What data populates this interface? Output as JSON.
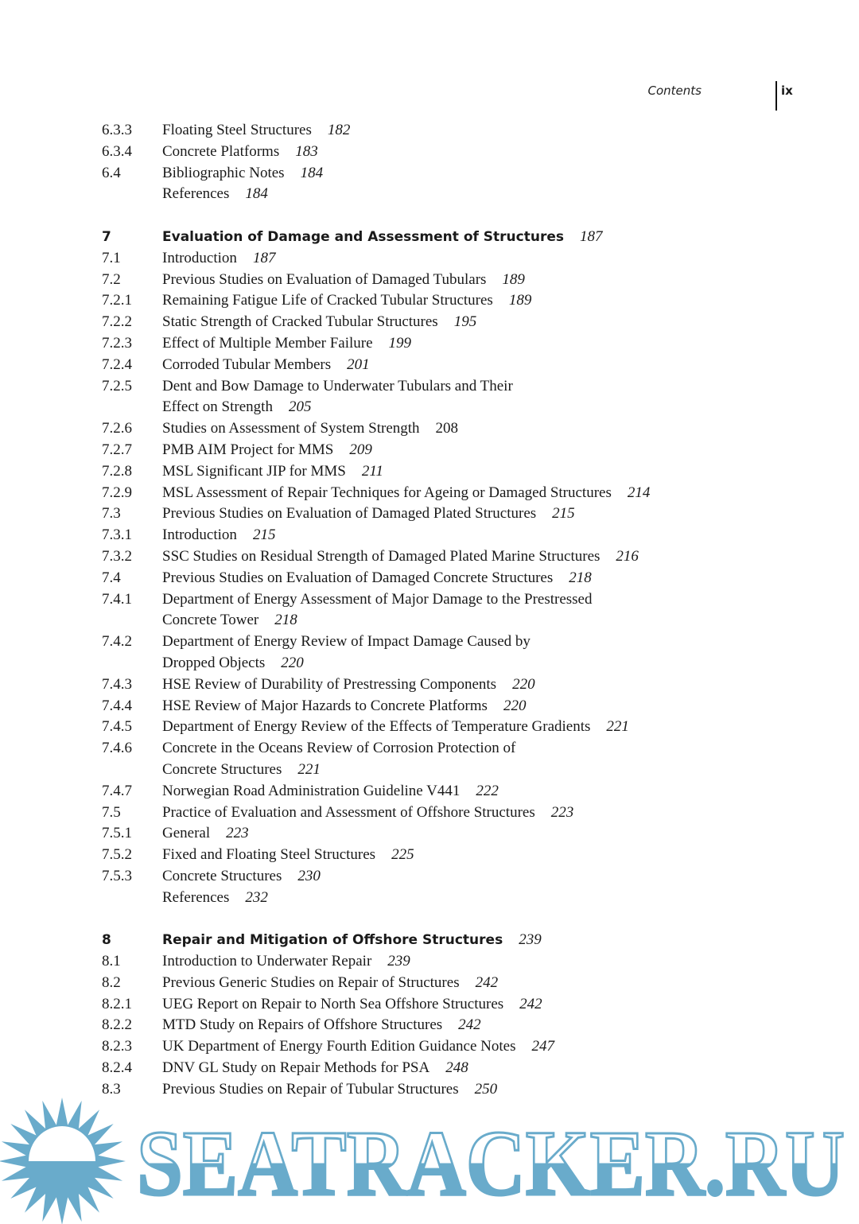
{
  "running_head": {
    "label": "Contents",
    "page": "ix"
  },
  "toc": [
    {
      "num": "6.3.3",
      "title": "Floating Steel Structures",
      "page": "182"
    },
    {
      "num": "6.3.4",
      "title": "Concrete Platforms",
      "page": "183"
    },
    {
      "num": "6.4",
      "title": "Bibliographic Notes",
      "page": "184"
    },
    {
      "num": "",
      "title": "References",
      "page": "184"
    },
    {
      "blank": true
    },
    {
      "num": "7",
      "title": "Evaluation of Damage and Assessment of Structures",
      "page": "187",
      "chapter": true
    },
    {
      "num": "7.1",
      "title": "Introduction",
      "page": "187"
    },
    {
      "num": "7.2",
      "title": "Previous Studies on Evaluation of Damaged Tubulars",
      "page": "189"
    },
    {
      "num": "7.2.1",
      "title": "Remaining Fatigue Life of Cracked Tubular Structures",
      "page": "189"
    },
    {
      "num": "7.2.2",
      "title": "Static Strength of Cracked Tubular Structures",
      "page": "195"
    },
    {
      "num": "7.2.3",
      "title": "Effect of Multiple Member Failure",
      "page": "199"
    },
    {
      "num": "7.2.4",
      "title": "Corroded Tubular Members",
      "page": "201"
    },
    {
      "num": "7.2.5",
      "title": "Dent and Bow Damage to Underwater Tubulars and Their",
      "title_cont": "Effect on Strength",
      "page": "205"
    },
    {
      "num": "7.2.6",
      "title": "Studies on Assessment of System Strength",
      "page": "208",
      "upright": true
    },
    {
      "num": "7.2.7",
      "title": "PMB AIM Project for MMS",
      "page": "209"
    },
    {
      "num": "7.2.8",
      "title": "MSL Significant JIP for MMS",
      "page": "211"
    },
    {
      "num": "7.2.9",
      "title": "MSL Assessment of Repair Techniques for Ageing or Damaged Structures",
      "page": "214"
    },
    {
      "num": "7.3",
      "title": "Previous Studies on Evaluation of Damaged Plated Structures",
      "page": "215"
    },
    {
      "num": "7.3.1",
      "title": "Introduction",
      "page": "215"
    },
    {
      "num": "7.3.2",
      "title": "SSC Studies on Residual Strength of Damaged Plated Marine Structures",
      "page": "216"
    },
    {
      "num": "7.4",
      "title": "Previous Studies on Evaluation of Damaged Concrete Structures",
      "page": "218"
    },
    {
      "num": "7.4.1",
      "title": "Department of Energy Assessment of Major Damage to the Prestressed",
      "title_cont": "Concrete Tower",
      "page": "218"
    },
    {
      "num": "7.4.2",
      "title": "Department of Energy Review of Impact Damage Caused by",
      "title_cont": "Dropped Objects",
      "page": "220"
    },
    {
      "num": "7.4.3",
      "title": "HSE Review of Durability of Prestressing Components",
      "page": "220"
    },
    {
      "num": "7.4.4",
      "title": "HSE Review of Major Hazards to Concrete Platforms",
      "page": "220"
    },
    {
      "num": "7.4.5",
      "title": "Department of Energy Review of the Effects of Temperature Gradients",
      "page": "221"
    },
    {
      "num": "7.4.6",
      "title": "Concrete in the Oceans Review of Corrosion Protection of",
      "title_cont": "Concrete Structures",
      "page": "221"
    },
    {
      "num": "7.4.7",
      "title": "Norwegian Road Administration Guideline V441",
      "page": "222"
    },
    {
      "num": "7.5",
      "title": "Practice of Evaluation and Assessment of Offshore Structures",
      "page": "223"
    },
    {
      "num": "7.5.1",
      "title": "General",
      "page": "223"
    },
    {
      "num": "7.5.2",
      "title": "Fixed and Floating Steel Structures",
      "page": "225"
    },
    {
      "num": "7.5.3",
      "title": "Concrete Structures",
      "page": "230"
    },
    {
      "num": "",
      "title": "References",
      "page": "232"
    },
    {
      "blank": true
    },
    {
      "num": "8",
      "title": "Repair and Mitigation of Offshore Structures",
      "page": "239",
      "chapter": true
    },
    {
      "num": "8.1",
      "title": "Introduction to Underwater Repair",
      "page": "239"
    },
    {
      "num": "8.2",
      "title": "Previous Generic Studies on Repair of Structures",
      "page": "242"
    },
    {
      "num": "8.2.1",
      "title": "UEG Report on Repair to North Sea Offshore Structures",
      "page": "242"
    },
    {
      "num": "8.2.2",
      "title": "MTD Study on Repairs of Offshore Structures",
      "page": "242"
    },
    {
      "num": "8.2.3",
      "title": "UK Department of Energy Fourth Edition Guidance Notes",
      "page": "247"
    },
    {
      "num": "8.2.4",
      "title": "DNV GL Study on Repair Methods for PSA",
      "page": "248"
    },
    {
      "num": "8.3",
      "title": "Previous Studies on Repair of Tubular Structures",
      "page": "250"
    }
  ],
  "watermark": {
    "text": "SEATRACKER.RU",
    "color": "#69abcb"
  }
}
